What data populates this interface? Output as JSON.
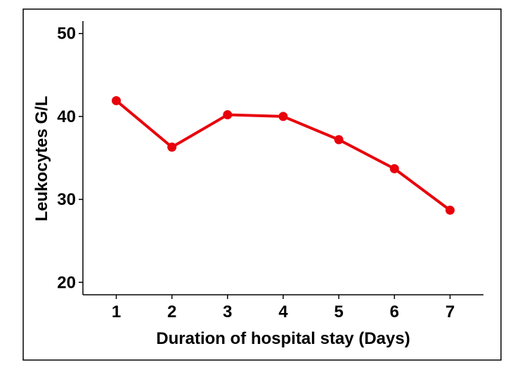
{
  "chart_data": {
    "type": "line",
    "title": "",
    "xlabel": "Duration of hospital stay (Days)",
    "ylabel": "Leukocytes G/L",
    "x": [
      1,
      2,
      3,
      4,
      5,
      6,
      7
    ],
    "x_tick_labels": [
      "1",
      "2",
      "3",
      "4",
      "5",
      "6",
      "7"
    ],
    "xlim": [
      0.4,
      7.6
    ],
    "ylim": [
      18.5,
      51.5
    ],
    "y_ticks": [
      20,
      30,
      40,
      50
    ],
    "y_tick_labels": [
      "20",
      "30",
      "40",
      "50"
    ],
    "grid": false,
    "legend": "none",
    "series": [
      {
        "color": "#e8000b",
        "values": [
          41.9,
          36.3,
          40.2,
          40.0,
          37.2,
          33.7,
          28.7
        ]
      }
    ]
  }
}
